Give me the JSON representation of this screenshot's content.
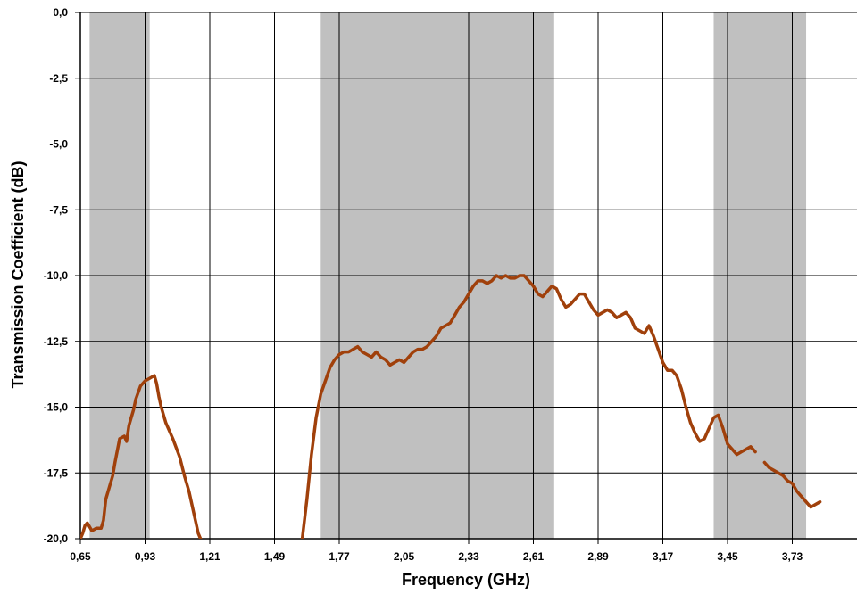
{
  "chart_data": {
    "type": "line",
    "title": "",
    "xlabel": "Frequency (GHz)",
    "ylabel": "Transmission Coefficient (dB)",
    "xlim": [
      0.65,
      4.01
    ],
    "ylim": [
      -20.0,
      0.0
    ],
    "x_ticks": [
      "0,65",
      "0,93",
      "1,21",
      "1,49",
      "1,77",
      "2,05",
      "2,33",
      "2,61",
      "2,89",
      "3,17",
      "3,45",
      "3,73"
    ],
    "y_ticks": [
      "0,0",
      "-2,5",
      "-5,0",
      "-7,5",
      "-10,0",
      "-12,5",
      "-15,0",
      "-17,5",
      "-20,0"
    ],
    "grid": true,
    "legend": "none",
    "shaded_bands": [
      {
        "x_start": 0.69,
        "x_end": 0.95
      },
      {
        "x_start": 1.69,
        "x_end": 2.7
      },
      {
        "x_start": 3.39,
        "x_end": 3.79
      }
    ],
    "series": [
      {
        "color": "#a0400b",
        "segments": [
          {
            "x": [
              0.65,
              0.66,
              0.67,
              0.68,
              0.7,
              0.72,
              0.74,
              0.75,
              0.76,
              0.78,
              0.79,
              0.8,
              0.82,
              0.84,
              0.85,
              0.86,
              0.88,
              0.89,
              0.91,
              0.93,
              0.95,
              0.97,
              0.98,
              0.99,
              1.0,
              1.02,
              1.05,
              1.08,
              1.1,
              1.12,
              1.14,
              1.15,
              1.16,
              1.17
            ],
            "y": [
              -20.0,
              -19.8,
              -19.5,
              -19.4,
              -19.7,
              -19.6,
              -19.6,
              -19.3,
              -18.5,
              -17.9,
              -17.6,
              -17.1,
              -16.2,
              -16.1,
              -16.3,
              -15.7,
              -15.1,
              -14.7,
              -14.2,
              -14.0,
              -13.9,
              -13.8,
              -14.1,
              -14.6,
              -15.0,
              -15.6,
              -16.2,
              -16.9,
              -17.6,
              -18.2,
              -19.0,
              -19.4,
              -19.8,
              -20.0
            ]
          },
          {
            "x": [
              1.61,
              1.63,
              1.65,
              1.67,
              1.69,
              1.71,
              1.73,
              1.75,
              1.77,
              1.79,
              1.81,
              1.83,
              1.85,
              1.87,
              1.89,
              1.91,
              1.93,
              1.95,
              1.97,
              1.99,
              2.01,
              2.03,
              2.05,
              2.07,
              2.09,
              2.11,
              2.13,
              2.15,
              2.17,
              2.19,
              2.21,
              2.23,
              2.25,
              2.27,
              2.29,
              2.31,
              2.33,
              2.35,
              2.37,
              2.39,
              2.41,
              2.43,
              2.45,
              2.47,
              2.49,
              2.51,
              2.53,
              2.55,
              2.57,
              2.59,
              2.61,
              2.63,
              2.65,
              2.67,
              2.69,
              2.71,
              2.73,
              2.75,
              2.77,
              2.79,
              2.81,
              2.83,
              2.85,
              2.87,
              2.89,
              2.91,
              2.93,
              2.95,
              2.97,
              2.99,
              3.01,
              3.03,
              3.05,
              3.07,
              3.09,
              3.11,
              3.13,
              3.15,
              3.17,
              3.19,
              3.21,
              3.23,
              3.25,
              3.27,
              3.29,
              3.31,
              3.33,
              3.35,
              3.37,
              3.39,
              3.41,
              3.43,
              3.45,
              3.47,
              3.49,
              3.51,
              3.53,
              3.55,
              3.57
            ],
            "y": [
              -20.0,
              -18.5,
              -16.8,
              -15.4,
              -14.5,
              -14.0,
              -13.5,
              -13.2,
              -13.0,
              -12.9,
              -12.9,
              -12.8,
              -12.7,
              -12.9,
              -13.0,
              -13.1,
              -12.9,
              -13.1,
              -13.2,
              -13.4,
              -13.3,
              -13.2,
              -13.3,
              -13.1,
              -12.9,
              -12.8,
              -12.8,
              -12.7,
              -12.5,
              -12.3,
              -12.0,
              -11.9,
              -11.8,
              -11.5,
              -11.2,
              -11.0,
              -10.7,
              -10.4,
              -10.2,
              -10.2,
              -10.3,
              -10.2,
              -10.0,
              -10.1,
              -10.0,
              -10.1,
              -10.1,
              -10.0,
              -10.0,
              -10.2,
              -10.4,
              -10.7,
              -10.8,
              -10.6,
              -10.4,
              -10.5,
              -10.9,
              -11.2,
              -11.1,
              -10.9,
              -10.7,
              -10.7,
              -11.0,
              -11.3,
              -11.5,
              -11.4,
              -11.3,
              -11.4,
              -11.6,
              -11.5,
              -11.4,
              -11.6,
              -12.0,
              -12.1,
              -12.2,
              -11.9,
              -12.3,
              -12.8,
              -13.3,
              -13.6,
              -13.6,
              -13.8,
              -14.3,
              -15.0,
              -15.6,
              -16.0,
              -16.3,
              -16.2,
              -15.8,
              -15.4,
              -15.3,
              -15.8,
              -16.4,
              -16.6,
              -16.8,
              -16.7,
              -16.6,
              -16.5,
              -16.7
            ]
          },
          {
            "x": [
              3.61,
              3.63,
              3.65,
              3.67,
              3.69,
              3.71,
              3.73,
              3.75,
              3.77,
              3.79,
              3.81,
              3.83,
              3.85
            ],
            "y": [
              -17.1,
              -17.3,
              -17.4,
              -17.5,
              -17.6,
              -17.8,
              -17.9,
              -18.2,
              -18.4,
              -18.6,
              -18.8,
              -18.7,
              -18.6
            ]
          }
        ]
      }
    ]
  }
}
